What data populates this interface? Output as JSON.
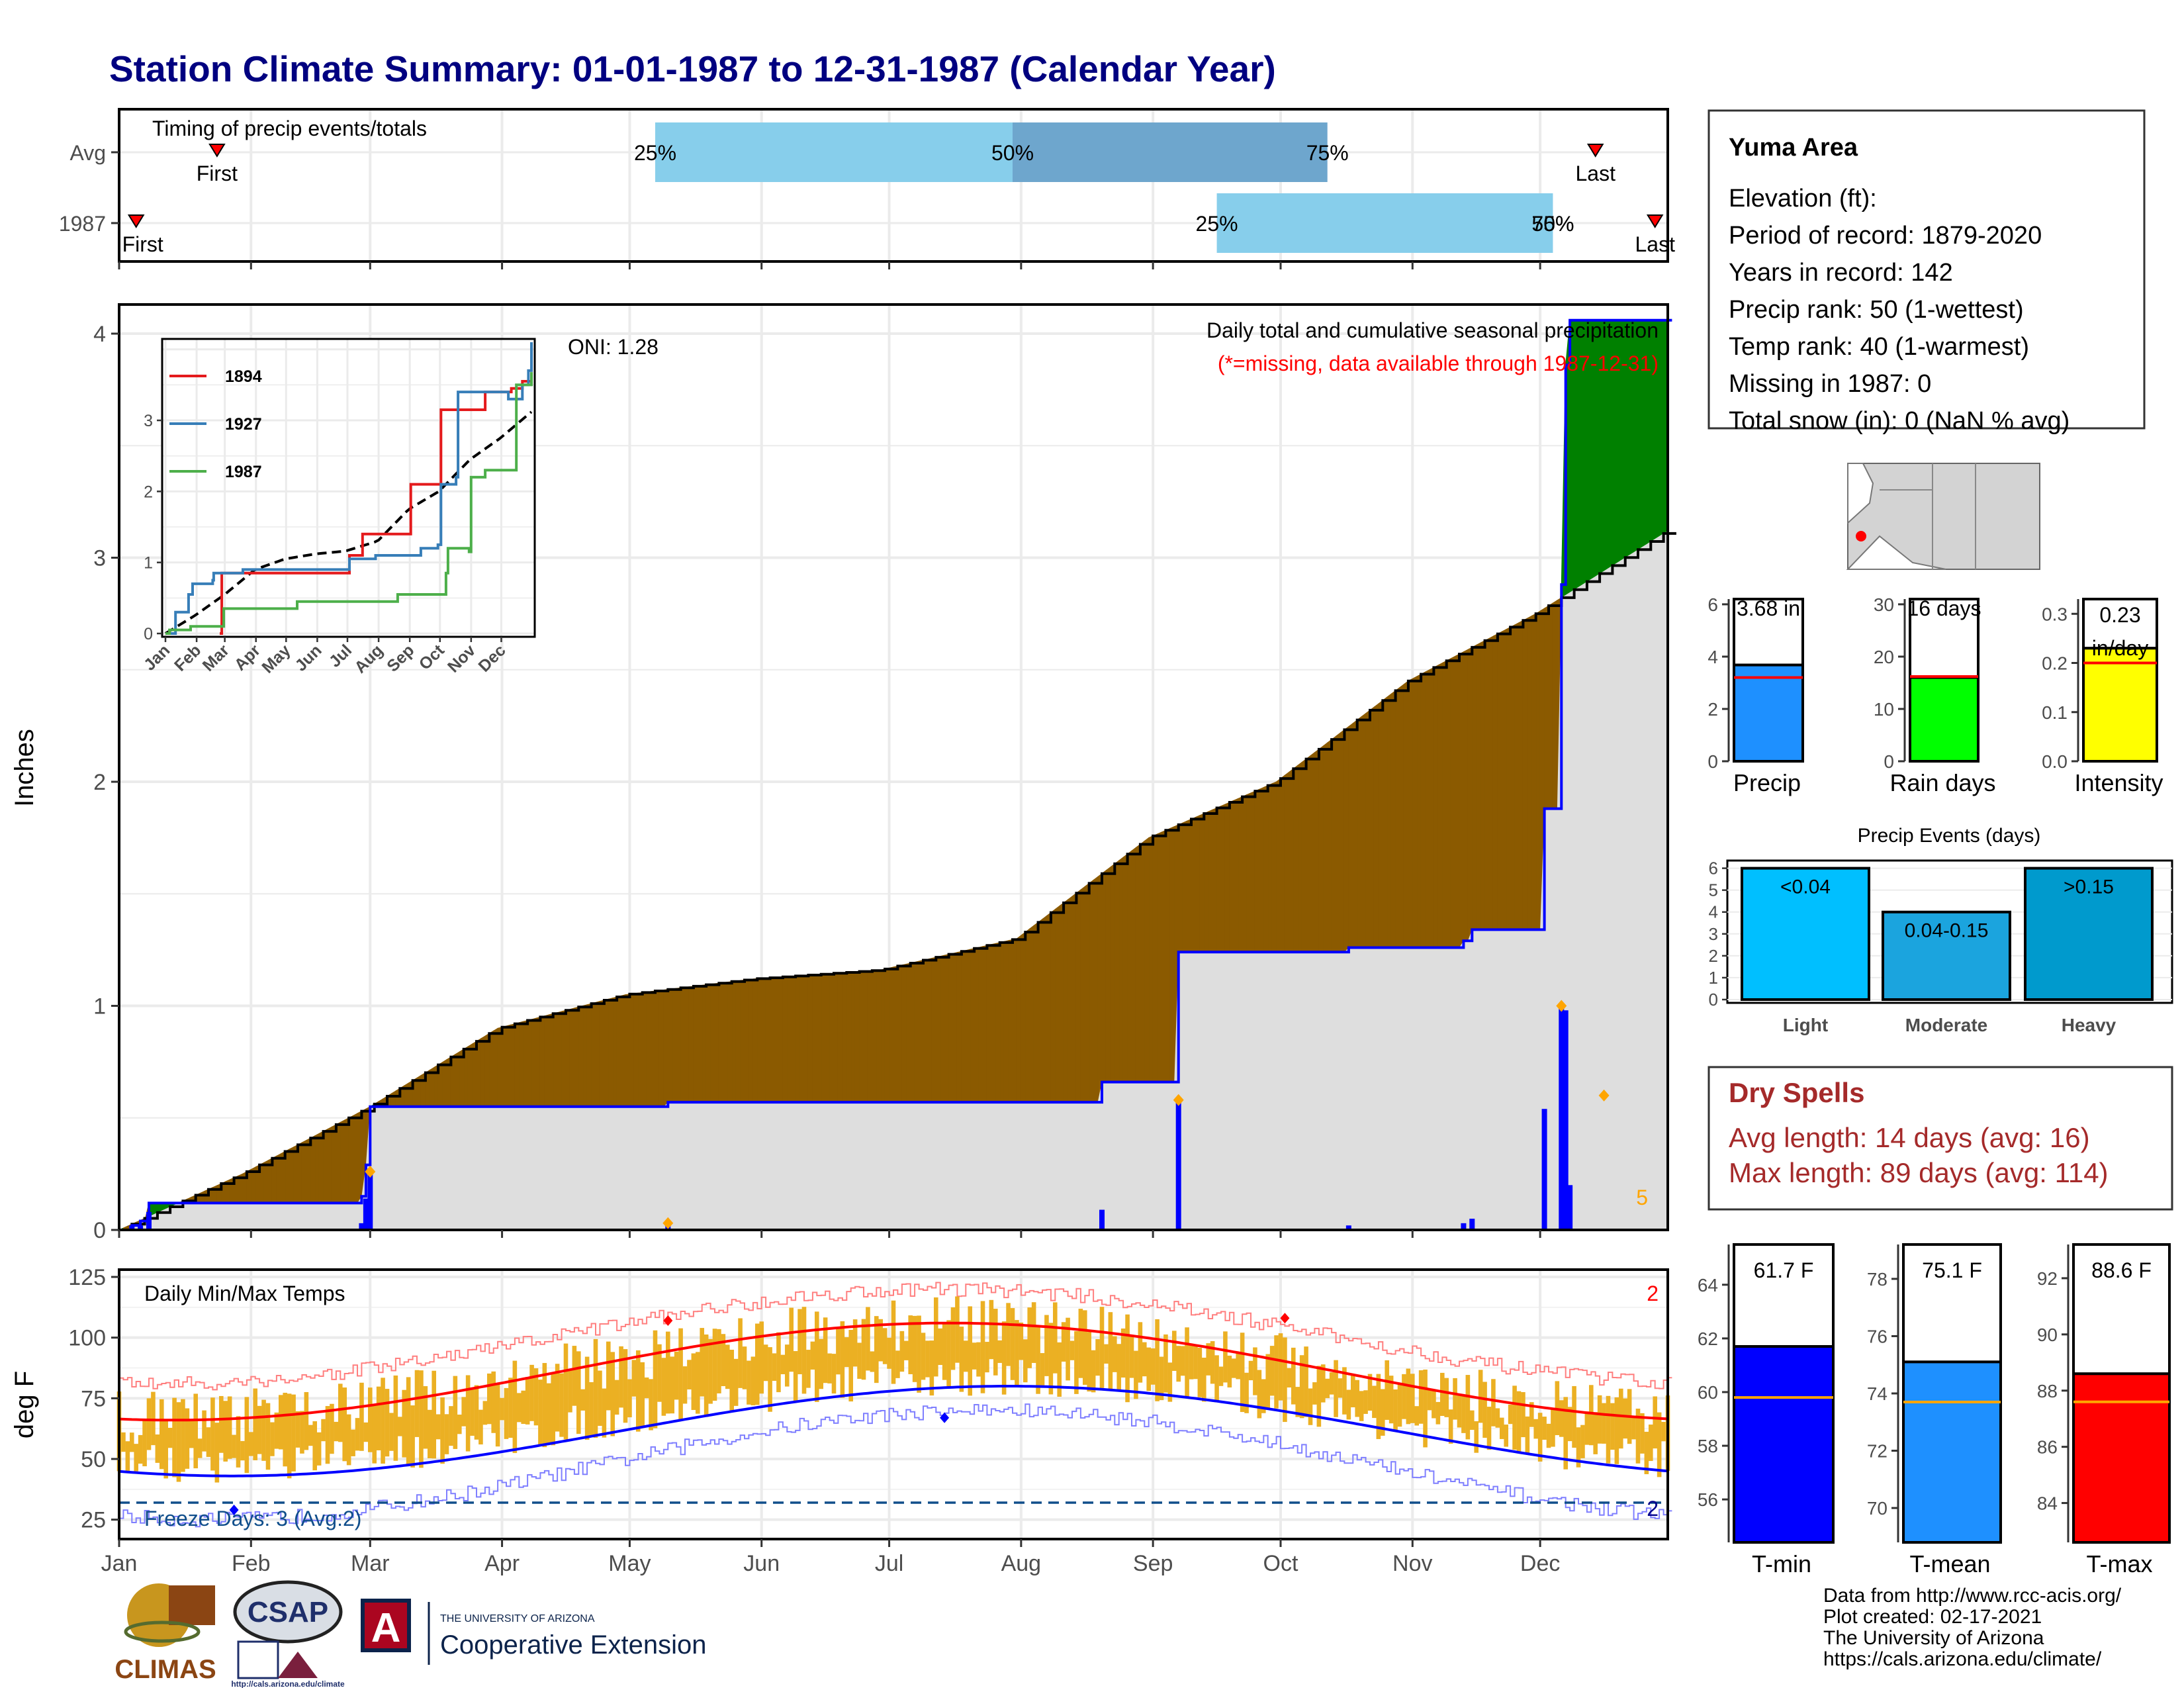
{
  "title": "Station Climate Summary: 01-01-1987 to 12-31-1987 (Calendar Year)",
  "months": [
    "Jan",
    "Feb",
    "Mar",
    "Apr",
    "May",
    "Jun",
    "Jul",
    "Aug",
    "Sep",
    "Oct",
    "Nov",
    "Dec"
  ],
  "colors": {
    "title": "#000080",
    "brown": "#8B5A00",
    "green": "#008000",
    "gray_fill": "#DEDEDE",
    "blue": "#0000FF",
    "orange": "#FFA500",
    "red": "#FF0000",
    "gold": "#EBB023",
    "light_blue": "#87CEEB",
    "steel_blue": "#6EA6CD",
    "dodger": "#1E90FF",
    "lime": "#00FF00",
    "yellow": "#FFFF00",
    "dry_red": "#A52A2A"
  },
  "timing": {
    "label": "Timing of precip events/totals",
    "row_labels": [
      "Avg",
      "1987"
    ],
    "avg": {
      "first_doy": 24,
      "p25_doy": 127,
      "p50_doy": 211,
      "p75_doy": 285,
      "last_doy": 348
    },
    "year": {
      "first_doy": 5,
      "p25_doy": 259,
      "p50_doy": 338,
      "p75_doy": 338,
      "last_doy": 362
    },
    "first_label": "First",
    "last_label": "Last",
    "p25_label": "25%",
    "p50_label": "50%",
    "p75_label": "75%",
    "p5075_label": "50%"
  },
  "precip_panel": {
    "ylabel": "Inches",
    "title": "Daily total and cumulative seasonal precipitation",
    "subtitle": "(*=missing, data available through 1987-12-31)",
    "oni": "ONI: 1.28",
    "yticks": [
      0,
      1,
      2,
      3,
      4
    ],
    "corner_count": "5"
  },
  "inset": {
    "yticks": [
      0,
      1,
      2,
      3
    ],
    "series": [
      {
        "name": "1894",
        "color": "#E41A1C",
        "values": [
          [
            55,
            0
          ],
          [
            57,
            0.85
          ],
          [
            183,
            0.85
          ],
          [
            184,
            1.1
          ],
          [
            196,
            1.1
          ],
          [
            197,
            1.4
          ],
          [
            244,
            1.4
          ],
          [
            245,
            2.1
          ],
          [
            268,
            2.1
          ],
          [
            275,
            3.15
          ],
          [
            318,
            3.15
          ],
          [
            319,
            3.4
          ],
          [
            345,
            3.45
          ],
          [
            356,
            3.55
          ],
          [
            365,
            3.65
          ]
        ]
      },
      {
        "name": "1927",
        "color": "#377EB8",
        "values": [
          [
            1,
            0
          ],
          [
            11,
            0.3
          ],
          [
            24,
            0.55
          ],
          [
            28,
            0.7
          ],
          [
            48,
            0.75
          ],
          [
            49,
            0.85
          ],
          [
            78,
            0.9
          ],
          [
            183,
            0.9
          ],
          [
            184,
            1.05
          ],
          [
            210,
            1.1
          ],
          [
            255,
            1.2
          ],
          [
            272,
            1.25
          ],
          [
            275,
            2.1
          ],
          [
            290,
            2.2
          ],
          [
            292,
            3.4
          ],
          [
            340,
            3.4
          ],
          [
            342,
            3.3
          ],
          [
            356,
            3.5
          ],
          [
            362,
            3.7
          ],
          [
            365,
            4.1
          ]
        ]
      },
      {
        "name": "1987",
        "color": "#4DAF4A",
        "values": [
          [
            1,
            0
          ],
          [
            5,
            0.05
          ],
          [
            26,
            0.1
          ],
          [
            57,
            0.1
          ],
          [
            59,
            0.35
          ],
          [
            130,
            0.35
          ],
          [
            132,
            0.45
          ],
          [
            231,
            0.45
          ],
          [
            232,
            0.55
          ],
          [
            280,
            0.85
          ],
          [
            282,
            1.2
          ],
          [
            303,
            1.15
          ],
          [
            305,
            2.2
          ],
          [
            319,
            2.3
          ],
          [
            350,
            2.35
          ],
          [
            350,
            3.5
          ],
          [
            365,
            3.68
          ]
        ]
      }
    ]
  },
  "station": {
    "name": "Yuma Area",
    "lines": [
      "Elevation (ft):",
      "Period of record: 1879-2020",
      "Years in record: 142",
      "Precip rank: 50 (1-wettest)",
      "Temp rank: 40 (1-warmest)",
      "Missing in 1987: 0",
      "Total snow (in): 0 (NaN % avg)"
    ]
  },
  "summary_bars": [
    {
      "label": "Precip",
      "value_text": "3.68 in",
      "value": 3.68,
      "avg": 3.2,
      "ymax": 6.2,
      "ticks": [
        0,
        2,
        4,
        6
      ],
      "color": "#1E90FF"
    },
    {
      "label": "Rain days",
      "value_text": "16 days",
      "value": 16,
      "avg": 16.2,
      "ymax": 31,
      "ticks": [
        0,
        10,
        20,
        30
      ],
      "color": "#00FF00"
    },
    {
      "label": "Intensity",
      "value_text": "0.23 in/day",
      "value": 0.23,
      "avg": 0.2,
      "ymax": 0.33,
      "ticks": [
        "0.0",
        "0.1",
        "0.2",
        "0.3"
      ],
      "color": "#FFFF00"
    }
  ],
  "precip_events": {
    "title": "Precip Events (days)",
    "bars": [
      {
        "label": "Light",
        "inner": "<0.04",
        "value": 6,
        "color": "#00BFFF"
      },
      {
        "label": "Moderate",
        "inner": "0.04-0.15",
        "value": 4,
        "color": "#1BA4DE"
      },
      {
        "label": "Heavy",
        "inner": ">0.15",
        "value": 6,
        "color": "#009ACD"
      }
    ],
    "ticks": [
      0,
      1,
      2,
      3,
      4,
      5,
      6
    ]
  },
  "dry_spells": {
    "title": "Dry Spells",
    "avg_line": "Avg length: 14 days (avg: 16)",
    "max_line": "Max length: 89 days (avg: 114)"
  },
  "temp_panel": {
    "ylabel": "deg F",
    "title": "Daily Min/Max Temps",
    "freeze_label": "Freeze Days: 3 (Avg:2)",
    "count_max": "2",
    "count_min": "2",
    "yticks": [
      25,
      50,
      75,
      100,
      125
    ],
    "freeze_line": 32
  },
  "temp_bars": [
    {
      "label": "T-min",
      "value_text": "61.7 F",
      "value": 61.7,
      "avg": 59.8,
      "ymin": 54.4,
      "ymax": 65.5,
      "ticks": [
        56,
        58,
        60,
        62,
        64
      ],
      "color": "#0000FF"
    },
    {
      "label": "T-mean",
      "value_text": "75.1 F",
      "value": 75.1,
      "avg": 73.7,
      "ymin": 68.8,
      "ymax": 79.2,
      "ticks": [
        70,
        72,
        74,
        76,
        78
      ],
      "color": "#1E90FF"
    },
    {
      "label": "T-max",
      "value_text": "88.6 F",
      "value": 88.6,
      "avg": 87.6,
      "ymin": 82.6,
      "ymax": 93.2,
      "ticks": [
        84,
        86,
        88,
        90,
        92
      ],
      "color": "#FF0000"
    }
  ],
  "footer": {
    "lines": [
      "Data from http://www.rcc-acis.org/",
      "Plot created: 02-17-2021",
      "The University of Arizona",
      "https://cals.arizona.edu/climate/"
    ],
    "climas": "CLIMAS",
    "csap": "CSAP",
    "csap_url": "http://cals.arizona.edu/climate",
    "ua_small": "THE UNIVERSITY OF ARIZONA",
    "ua_big": "Cooperative Extension"
  }
}
